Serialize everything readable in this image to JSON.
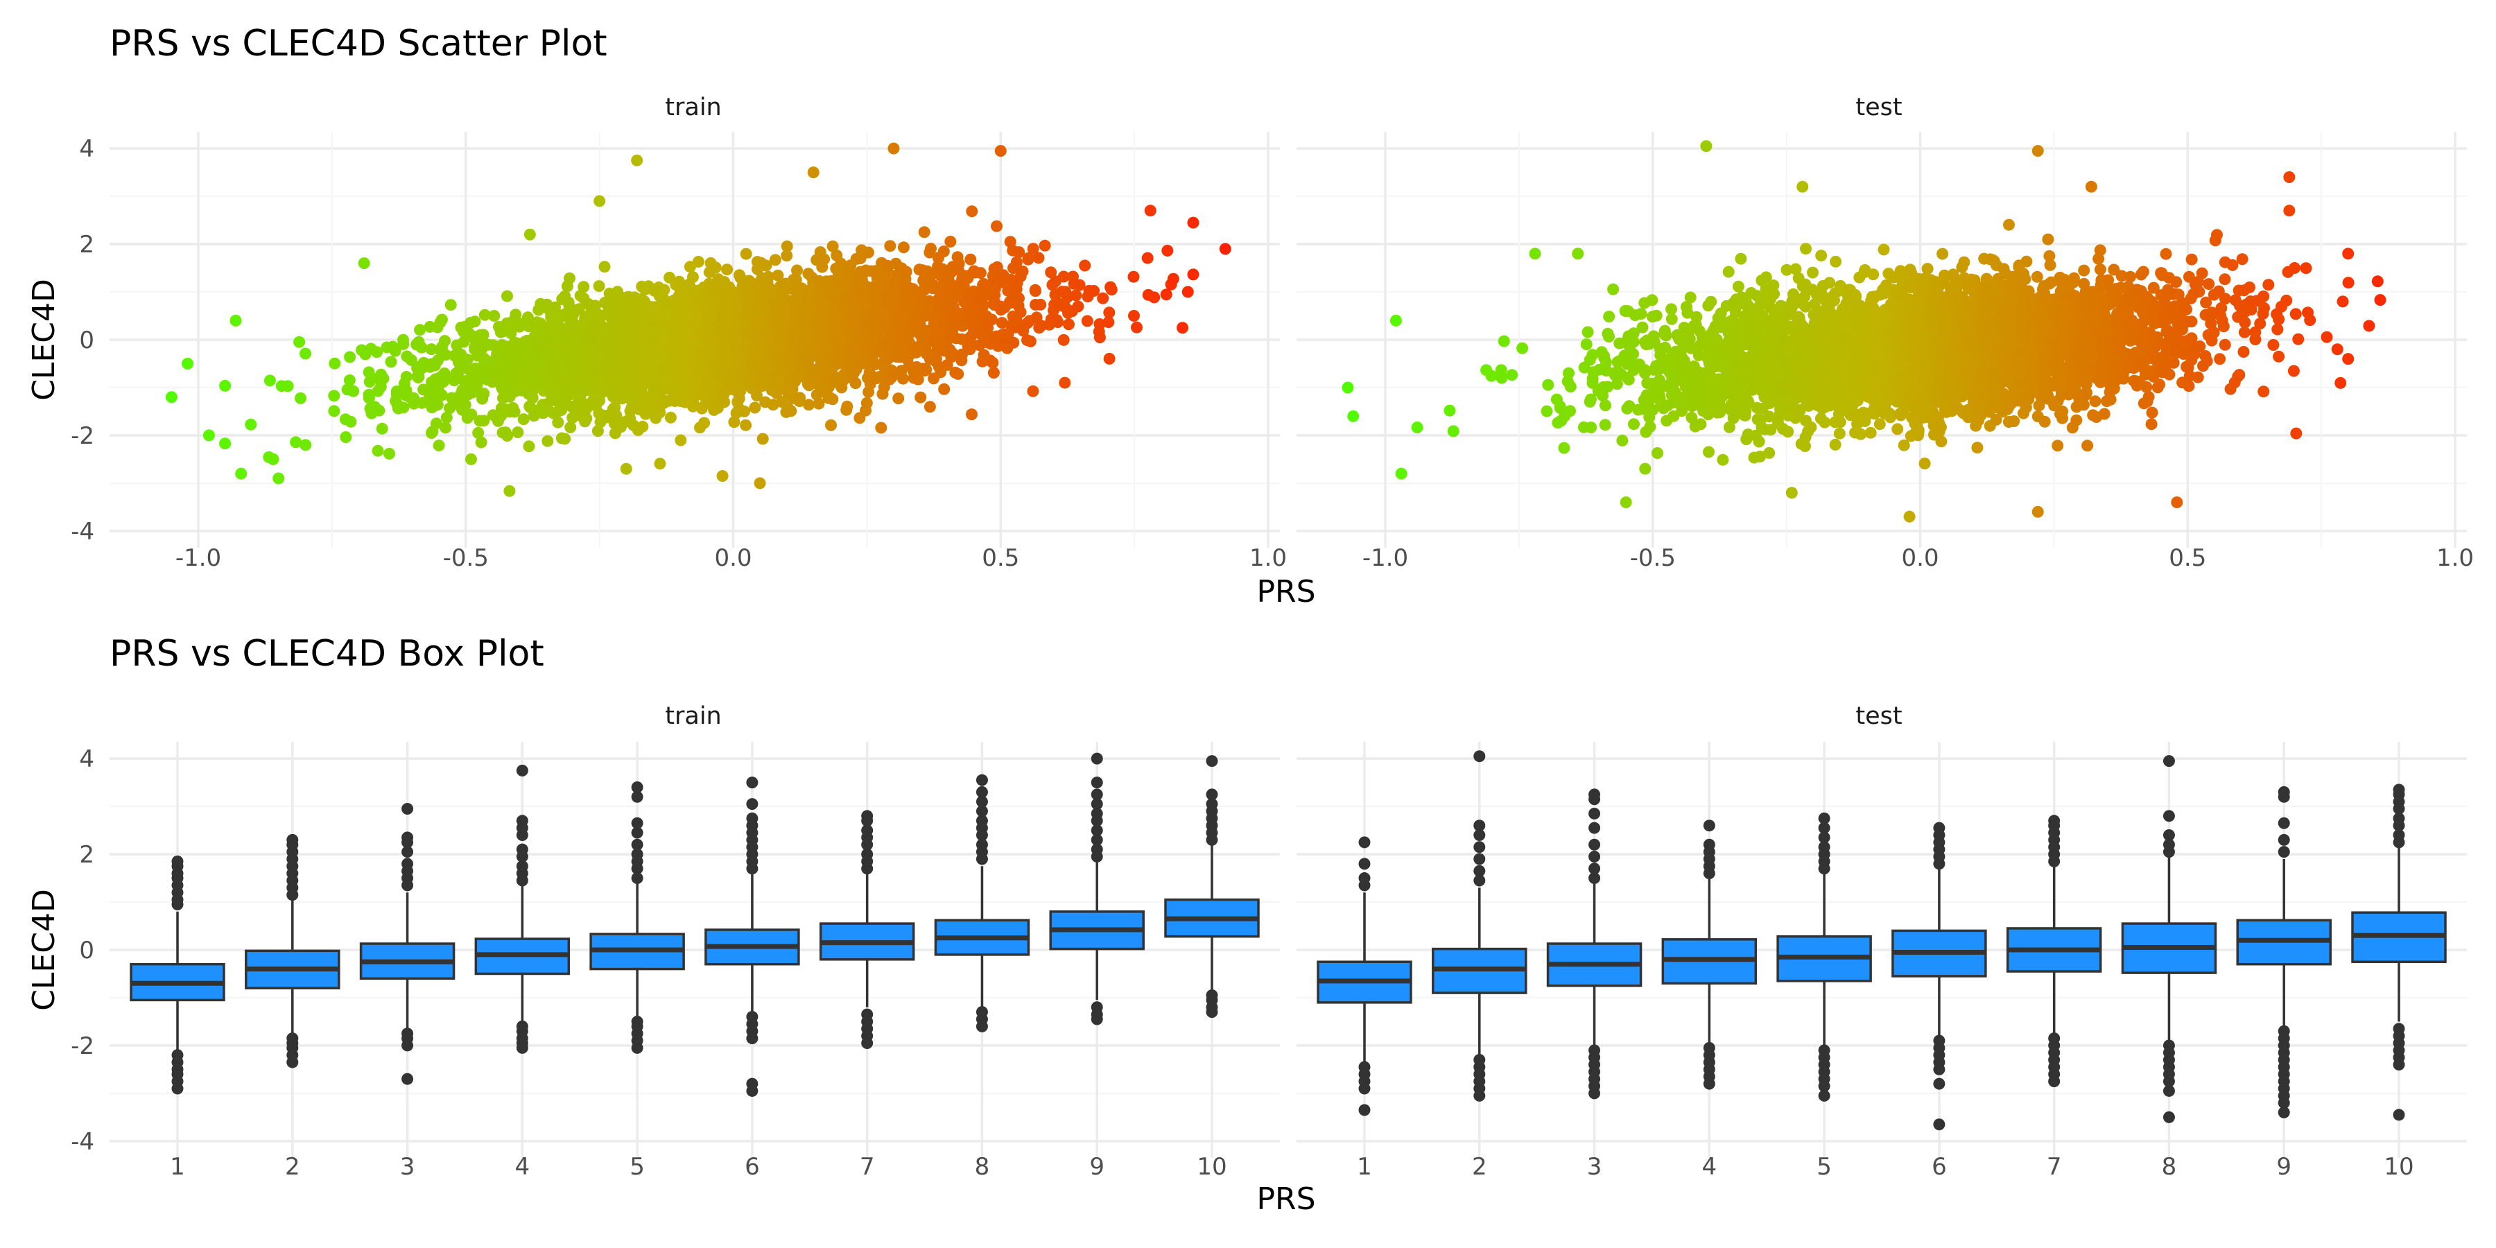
{
  "figure": {
    "scatter_title": "PRS vs CLEC4D Scatter Plot",
    "box_title": "PRS vs CLEC4D Box Plot",
    "xlabel": "PRS",
    "ylabel": "CLEC4D",
    "panel_labels": [
      "train",
      "test"
    ],
    "scatter_x_tick_labels": [
      "-1.0",
      "-0.5",
      "0.0",
      "0.5",
      "1.0"
    ],
    "y_tick_labels": [
      "4",
      "2",
      "0",
      "-2",
      "-4"
    ],
    "box_x_tick_labels": [
      "1",
      "2",
      "3",
      "4",
      "5",
      "6",
      "7",
      "8",
      "9",
      "10"
    ]
  },
  "colors": {
    "low": "#4cff00",
    "mid": "#c0b400",
    "high": "#ff2000",
    "box_fill": "#1e90ff",
    "box_line": "#333333",
    "grid_major": "#ebebeb",
    "grid_minor": "#f5f5f5"
  },
  "chart_data": [
    {
      "type": "scatter",
      "title": "PRS vs CLEC4D Scatter Plot",
      "xlabel": "PRS",
      "ylabel": "CLEC4D",
      "xlim": [
        -1.1,
        1.0
      ],
      "ylim": [
        -4,
        4
      ],
      "color_by": "PRS",
      "panels": [
        {
          "name": "train",
          "trend": {
            "slope": 1.3,
            "intercept": -0.02,
            "noise_sd": 0.62,
            "x_mean": 0.0,
            "x_sd": 0.27
          },
          "points": [
            {
              "x": -1.05,
              "y": -1.2
            },
            {
              "x": -1.02,
              "y": -0.5
            },
            {
              "x": -0.98,
              "y": -2.0
            },
            {
              "x": -0.93,
              "y": 0.4
            },
            {
              "x": -0.92,
              "y": -2.8
            },
            {
              "x": -0.85,
              "y": -2.9
            },
            {
              "x": -0.86,
              "y": -2.5
            },
            {
              "x": -0.69,
              "y": 1.6
            },
            {
              "x": -0.49,
              "y": -2.5
            },
            {
              "x": -0.38,
              "y": 2.2
            },
            {
              "x": -0.25,
              "y": 2.9
            },
            {
              "x": -0.18,
              "y": 3.75
            },
            {
              "x": -0.2,
              "y": -2.7
            },
            {
              "x": -0.02,
              "y": -2.85
            },
            {
              "x": 0.05,
              "y": -3.0
            },
            {
              "x": 0.15,
              "y": 3.5
            },
            {
              "x": 0.3,
              "y": 4.0
            },
            {
              "x": 0.5,
              "y": 3.95
            },
            {
              "x": 0.62,
              "y": -0.9
            },
            {
              "x": 0.92,
              "y": 1.9
            },
            {
              "x": 0.85,
              "y": 1.0
            },
            {
              "x": 0.84,
              "y": 0.25
            },
            {
              "x": 0.78,
              "y": 2.7
            }
          ]
        },
        {
          "name": "test",
          "trend": {
            "slope": 0.82,
            "intercept": -0.2,
            "noise_sd": 0.7,
            "x_mean": 0.0,
            "x_sd": 0.26
          },
          "points": [
            {
              "x": -1.07,
              "y": -1.0
            },
            {
              "x": -1.06,
              "y": -1.6
            },
            {
              "x": -0.98,
              "y": 0.4
            },
            {
              "x": -0.97,
              "y": -2.8
            },
            {
              "x": -0.72,
              "y": 1.8
            },
            {
              "x": -0.64,
              "y": 1.8
            },
            {
              "x": -0.55,
              "y": -3.4
            },
            {
              "x": -0.4,
              "y": 4.05
            },
            {
              "x": -0.22,
              "y": 3.2
            },
            {
              "x": -0.24,
              "y": -3.2
            },
            {
              "x": -0.02,
              "y": -3.7
            },
            {
              "x": 0.22,
              "y": 3.95
            },
            {
              "x": 0.22,
              "y": -3.6
            },
            {
              "x": 0.32,
              "y": 3.2
            },
            {
              "x": 0.48,
              "y": -3.4
            },
            {
              "x": 0.69,
              "y": 3.4
            },
            {
              "x": 0.69,
              "y": 2.7
            },
            {
              "x": 0.8,
              "y": 1.8
            },
            {
              "x": 0.79,
              "y": 0.8
            },
            {
              "x": 0.8,
              "y": -0.4
            },
            {
              "x": 0.78,
              "y": -0.2
            },
            {
              "x": 0.7,
              "y": 1.5
            }
          ]
        }
      ]
    },
    {
      "type": "box",
      "title": "PRS vs CLEC4D Box Plot",
      "xlabel": "PRS",
      "ylabel": "CLEC4D",
      "categories": [
        "1",
        "2",
        "3",
        "4",
        "5",
        "6",
        "7",
        "8",
        "9",
        "10"
      ],
      "ylim": [
        -4,
        4
      ],
      "panels": [
        {
          "name": "train",
          "boxes": [
            {
              "q1": -1.05,
              "median": -0.7,
              "q3": -0.3,
              "whisker_low": -2.15,
              "whisker_high": 0.8,
              "outliers": [
                -2.2,
                -2.35,
                -2.5,
                -2.6,
                -2.75,
                -2.9,
                0.95,
                1.05,
                1.2,
                1.35,
                1.5,
                1.6,
                1.75,
                1.85
              ]
            },
            {
              "q1": -0.8,
              "median": -0.4,
              "q3": -0.02,
              "whisker_low": -1.8,
              "whisker_high": 1.05,
              "outliers": [
                -1.85,
                -1.95,
                -2.05,
                -2.2,
                -2.35,
                1.15,
                1.3,
                1.45,
                1.6,
                1.75,
                1.9,
                2.05,
                2.2,
                2.3
              ]
            },
            {
              "q1": -0.6,
              "median": -0.25,
              "q3": 0.13,
              "whisker_low": -1.65,
              "whisker_high": 1.2,
              "outliers": [
                -1.75,
                -1.85,
                -2.0,
                -2.7,
                1.35,
                1.5,
                1.65,
                1.8,
                2.05,
                2.25,
                2.35,
                2.95
              ]
            },
            {
              "q1": -0.5,
              "median": -0.1,
              "q3": 0.23,
              "whisker_low": -1.5,
              "whisker_high": 1.35,
              "outliers": [
                -1.6,
                -1.7,
                -1.85,
                -1.95,
                -2.05,
                1.45,
                1.6,
                1.75,
                1.95,
                2.1,
                2.4,
                2.55,
                2.7,
                3.75
              ]
            },
            {
              "q1": -0.4,
              "median": 0.0,
              "q3": 0.33,
              "whisker_low": -1.4,
              "whisker_high": 1.4,
              "outliers": [
                -1.5,
                -1.6,
                -1.75,
                -1.9,
                -2.05,
                1.5,
                1.7,
                1.85,
                2.0,
                2.2,
                2.45,
                2.65,
                3.2,
                3.4
              ]
            },
            {
              "q1": -0.3,
              "median": 0.07,
              "q3": 0.42,
              "whisker_low": -1.3,
              "whisker_high": 1.6,
              "outliers": [
                -1.4,
                -1.55,
                -1.7,
                -1.85,
                -2.8,
                -2.95,
                1.7,
                1.85,
                2.0,
                2.15,
                2.3,
                2.45,
                2.6,
                2.75,
                3.05,
                3.5
              ]
            },
            {
              "q1": -0.2,
              "median": 0.15,
              "q3": 0.55,
              "whisker_low": -1.2,
              "whisker_high": 1.6,
              "outliers": [
                -1.35,
                -1.5,
                -1.65,
                -1.8,
                -1.95,
                1.7,
                1.85,
                2.0,
                2.2,
                2.35,
                2.5,
                2.7,
                2.8
              ]
            },
            {
              "q1": -0.1,
              "median": 0.25,
              "q3": 0.62,
              "whisker_low": -1.2,
              "whisker_high": 1.75,
              "outliers": [
                -1.3,
                -1.45,
                -1.6,
                1.9,
                2.05,
                2.2,
                2.4,
                2.55,
                2.7,
                2.9,
                3.1,
                3.3,
                3.55
              ]
            },
            {
              "q1": 0.02,
              "median": 0.42,
              "q3": 0.8,
              "whisker_low": -1.05,
              "whisker_high": 1.85,
              "outliers": [
                -1.2,
                -1.35,
                -1.45,
                1.95,
                2.1,
                2.3,
                2.5,
                2.7,
                2.85,
                3.05,
                3.25,
                3.5,
                4.0
              ]
            },
            {
              "q1": 0.28,
              "median": 0.65,
              "q3": 1.05,
              "whisker_low": -0.85,
              "whisker_high": 2.2,
              "outliers": [
                -0.95,
                -1.05,
                -1.2,
                -1.3,
                2.3,
                2.45,
                2.6,
                2.75,
                2.9,
                3.05,
                3.25,
                3.95
              ]
            }
          ]
        },
        {
          "name": "test",
          "boxes": [
            {
              "q1": -1.1,
              "median": -0.65,
              "q3": -0.25,
              "whisker_low": -2.35,
              "whisker_high": 1.2,
              "outliers": [
                -2.45,
                -2.6,
                -2.75,
                -2.9,
                -3.35,
                1.35,
                1.5,
                1.8,
                2.25
              ]
            },
            {
              "q1": -0.9,
              "median": -0.4,
              "q3": 0.02,
              "whisker_low": -2.2,
              "whisker_high": 1.3,
              "outliers": [
                -2.3,
                -2.45,
                -2.6,
                -2.75,
                -2.9,
                -3.05,
                1.45,
                1.65,
                1.9,
                2.15,
                2.4,
                2.6,
                4.05
              ]
            },
            {
              "q1": -0.75,
              "median": -0.3,
              "q3": 0.13,
              "whisker_low": -2.0,
              "whisker_high": 1.4,
              "outliers": [
                -2.1,
                -2.25,
                -2.4,
                -2.55,
                -2.7,
                -2.85,
                -3.0,
                1.5,
                1.7,
                1.95,
                2.2,
                2.55,
                2.85,
                3.15,
                3.25
              ]
            },
            {
              "q1": -0.7,
              "median": -0.2,
              "q3": 0.22,
              "whisker_low": -1.95,
              "whisker_high": 1.5,
              "outliers": [
                -2.05,
                -2.2,
                -2.35,
                -2.5,
                -2.65,
                -2.8,
                1.6,
                1.75,
                1.9,
                2.05,
                2.2,
                2.6
              ]
            },
            {
              "q1": -0.65,
              "median": -0.15,
              "q3": 0.28,
              "whisker_low": -2.0,
              "whisker_high": 1.6,
              "outliers": [
                -2.1,
                -2.25,
                -2.4,
                -2.55,
                -2.7,
                -2.85,
                -3.05,
                1.7,
                1.85,
                2.0,
                2.15,
                2.35,
                2.55,
                2.75
              ]
            },
            {
              "q1": -0.55,
              "median": -0.05,
              "q3": 0.4,
              "whisker_low": -1.8,
              "whisker_high": 1.7,
              "outliers": [
                -1.9,
                -2.05,
                -2.2,
                -2.35,
                -2.5,
                -2.8,
                -3.65,
                1.8,
                1.95,
                2.1,
                2.25,
                2.4,
                2.55
              ]
            },
            {
              "q1": -0.45,
              "median": 0.0,
              "q3": 0.45,
              "whisker_low": -1.75,
              "whisker_high": 1.75,
              "outliers": [
                -1.85,
                -2.0,
                -2.15,
                -2.3,
                -2.45,
                -2.6,
                -2.75,
                1.85,
                2.0,
                2.15,
                2.3,
                2.45,
                2.6,
                2.7
              ]
            },
            {
              "q1": -0.48,
              "median": 0.05,
              "q3": 0.55,
              "whisker_low": -1.9,
              "whisker_high": 1.95,
              "outliers": [
                -2.0,
                -2.15,
                -2.3,
                -2.45,
                -2.6,
                -2.75,
                -2.95,
                -3.5,
                2.05,
                2.2,
                2.4,
                2.8,
                3.95
              ]
            },
            {
              "q1": -0.3,
              "median": 0.2,
              "q3": 0.62,
              "whisker_low": -1.6,
              "whisker_high": 1.9,
              "outliers": [
                -1.7,
                -1.85,
                -2.0,
                -2.15,
                -2.3,
                -2.45,
                -2.6,
                -2.75,
                -2.9,
                -3.05,
                -3.2,
                -3.4,
                2.05,
                2.3,
                2.65,
                3.2,
                3.3
              ]
            },
            {
              "q1": -0.25,
              "median": 0.3,
              "q3": 0.78,
              "whisker_low": -1.5,
              "whisker_high": 2.15,
              "outliers": [
                -1.65,
                -1.8,
                -1.95,
                -2.1,
                -2.25,
                -2.4,
                -3.45,
                2.25,
                2.4,
                2.6,
                2.75,
                2.95,
                3.1,
                3.25,
                3.35
              ]
            }
          ]
        }
      ]
    }
  ]
}
